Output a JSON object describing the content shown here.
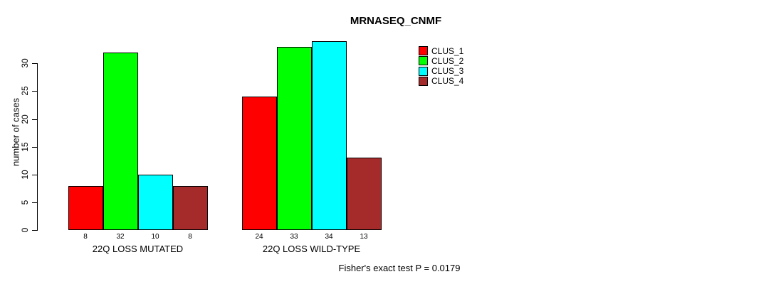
{
  "chart_data": {
    "type": "bar",
    "title": "MRNASEQ_CNMF",
    "ylabel": "number of cases",
    "xlabel": "",
    "categories": [
      "22Q LOSS MUTATED",
      "22Q LOSS WILD-TYPE"
    ],
    "series": [
      {
        "name": "CLUS_1",
        "color": "#FF0000",
        "values": [
          8,
          24
        ]
      },
      {
        "name": "CLUS_2",
        "color": "#00FF00",
        "values": [
          32,
          33
        ]
      },
      {
        "name": "CLUS_3",
        "color": "#00FFFF",
        "values": [
          10,
          34
        ]
      },
      {
        "name": "CLUS_4",
        "color": "#A52A2A",
        "values": [
          8,
          13
        ]
      }
    ],
    "yticks": [
      0,
      5,
      10,
      15,
      20,
      25,
      30
    ],
    "ylim": [
      0,
      34
    ],
    "grid": false,
    "bar_value_labels": true,
    "legend_position": "top-right",
    "annotation": "Fisher's exact test P = 0.0179",
    "axis_color": "#000000",
    "background_color": "#FFFFFF"
  }
}
